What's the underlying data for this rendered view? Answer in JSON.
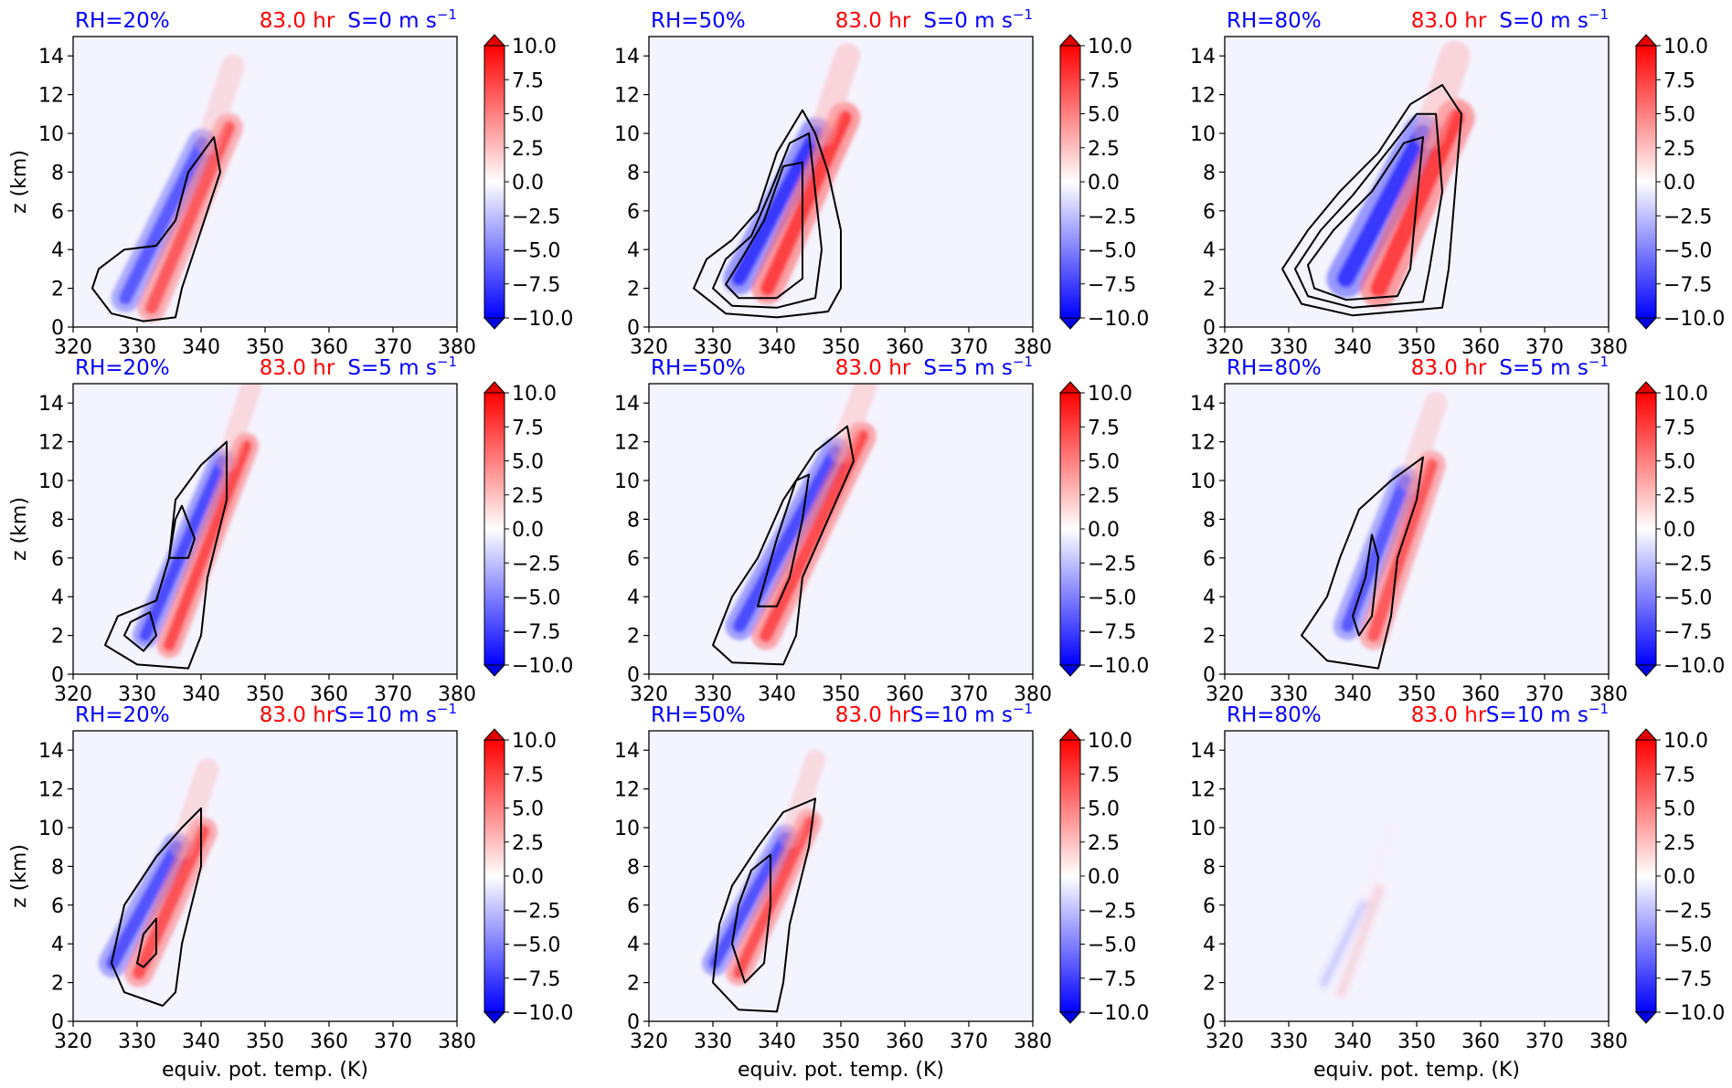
{
  "colors": {
    "blue_text": "#0000ff",
    "red_text": "#ff0000",
    "background_field": "#f4f4ff",
    "contour": "#000000"
  },
  "chart_data": {
    "type": "contourf",
    "layout": "3x3 panel grid",
    "x_axis": {
      "label": "equiv. pot. temp. (K)",
      "range": [
        320,
        380
      ],
      "ticks": [
        320,
        330,
        340,
        350,
        360,
        370,
        380
      ]
    },
    "y_axis": {
      "label": "z (km)",
      "range": [
        0,
        15
      ],
      "ticks": [
        0,
        2,
        4,
        6,
        8,
        10,
        12,
        14
      ]
    },
    "colorbar": {
      "ticks": [
        "10.0",
        "7.5",
        "5.0",
        "2.5",
        "0.0",
        "−2.5",
        "−5.0",
        "−7.5",
        "−10.0"
      ],
      "range": [
        -10,
        10
      ],
      "colormap": "blue-white-red (bwr)",
      "extend": "both"
    },
    "panels": [
      {
        "rh": "RH=20%",
        "time": "83.0 hr",
        "shear": "S=0 m s",
        "exp": "−1",
        "blob": {
          "x0": 329,
          "y0": 1.5,
          "x1": 341,
          "y1": 9.5,
          "w": 4.5,
          "intensity": 0.8
        },
        "contours": [
          [
            [
              323,
              2
            ],
            [
              324,
              3
            ],
            [
              328,
              4
            ],
            [
              333,
              4.2
            ],
            [
              336,
              5.5
            ],
            [
              338,
              8
            ],
            [
              342,
              9.8
            ],
            [
              343,
              8
            ],
            [
              340,
              5
            ],
            [
              337,
              2
            ],
            [
              336,
              0.5
            ],
            [
              331,
              0.3
            ],
            [
              326,
              0.7
            ],
            [
              323,
              2
            ]
          ]
        ]
      },
      {
        "rh": "RH=50%",
        "time": "83.0 hr",
        "shear": "S=0 m s",
        "exp": "−1",
        "blob": {
          "x0": 335,
          "y0": 2.5,
          "x1": 347,
          "y1": 10,
          "w": 5,
          "intensity": 1.0
        },
        "contours": [
          [
            [
              327,
              2
            ],
            [
              329,
              3.5
            ],
            [
              333,
              4.5
            ],
            [
              337,
              6
            ],
            [
              340,
              9
            ],
            [
              344,
              11.2
            ],
            [
              346,
              10
            ],
            [
              348,
              8
            ],
            [
              350,
              5
            ],
            [
              350,
              2
            ],
            [
              348,
              0.8
            ],
            [
              340,
              0.5
            ],
            [
              332,
              0.7
            ],
            [
              327,
              2
            ]
          ],
          [
            [
              330,
              2
            ],
            [
              332,
              3.5
            ],
            [
              336,
              4.7
            ],
            [
              339,
              7
            ],
            [
              342,
              9.5
            ],
            [
              345,
              10
            ],
            [
              346,
              7
            ],
            [
              347,
              4
            ],
            [
              346,
              1.5
            ],
            [
              340,
              1
            ],
            [
              333,
              1.1
            ],
            [
              330,
              2
            ]
          ],
          [
            [
              332,
              2.2
            ],
            [
              335,
              3.8
            ],
            [
              338,
              5.5
            ],
            [
              341,
              8.3
            ],
            [
              344,
              8.5
            ],
            [
              344,
              5.5
            ],
            [
              344,
              2.5
            ],
            [
              340,
              1.5
            ],
            [
              334,
              1.5
            ],
            [
              332,
              2.2
            ]
          ]
        ]
      },
      {
        "rh": "RH=80%",
        "time": "83.0 hr",
        "shear": "S=0 m s",
        "exp": "−1",
        "blob": {
          "x0": 340,
          "y0": 2.5,
          "x1": 352,
          "y1": 10,
          "w": 6,
          "intensity": 1.0
        },
        "contours": [
          [
            [
              329,
              3
            ],
            [
              333,
              5
            ],
            [
              338,
              7
            ],
            [
              344,
              9
            ],
            [
              349,
              11.5
            ],
            [
              354,
              12.5
            ],
            [
              357,
              11
            ],
            [
              356,
              7
            ],
            [
              355,
              3
            ],
            [
              354,
              1
            ],
            [
              340,
              0.6
            ],
            [
              332,
              1.2
            ],
            [
              329,
              3
            ]
          ],
          [
            [
              331,
              3
            ],
            [
              335,
              5
            ],
            [
              340,
              6.8
            ],
            [
              346,
              9.3
            ],
            [
              350,
              11
            ],
            [
              353,
              11
            ],
            [
              354,
              7
            ],
            [
              352,
              3
            ],
            [
              351,
              1.3
            ],
            [
              340,
              1
            ],
            [
              333,
              1.6
            ],
            [
              331,
              3
            ]
          ],
          [
            [
              333,
              3.2
            ],
            [
              337,
              5
            ],
            [
              343,
              7
            ],
            [
              348,
              9.5
            ],
            [
              351,
              9.8
            ],
            [
              350,
              6.5
            ],
            [
              349,
              3
            ],
            [
              347,
              1.6
            ],
            [
              339,
              1.4
            ],
            [
              334,
              2
            ],
            [
              333,
              3.2
            ]
          ]
        ]
      },
      {
        "rh": "RH=20%",
        "time": "83.0 hr",
        "shear": "S=5 m s",
        "exp": "−1",
        "blob": {
          "x0": 332,
          "y0": 2,
          "x1": 344,
          "y1": 11,
          "w": 4,
          "intensity": 0.9
        },
        "contours": [
          [
            [
              325,
              1.5
            ],
            [
              327,
              3
            ],
            [
              333,
              3.8
            ],
            [
              335,
              6
            ],
            [
              336,
              9
            ],
            [
              340,
              10.8
            ],
            [
              344,
              12
            ],
            [
              344,
              9
            ],
            [
              341,
              5
            ],
            [
              340,
              2
            ],
            [
              338,
              0.3
            ],
            [
              330,
              0.5
            ],
            [
              325,
              1.5
            ]
          ],
          [
            [
              335,
              6
            ],
            [
              336,
              8
            ],
            [
              337,
              8.7
            ],
            [
              339,
              7
            ],
            [
              338,
              6
            ],
            [
              335,
              6
            ]
          ],
          [
            [
              328,
              2
            ],
            [
              329,
              2.7
            ],
            [
              332,
              3.2
            ],
            [
              333,
              2
            ],
            [
              331,
              1.2
            ],
            [
              328,
              2
            ]
          ]
        ]
      },
      {
        "rh": "RH=50%",
        "time": "83.0 hr",
        "shear": "S=5 m s",
        "exp": "−1",
        "blob": {
          "x0": 335,
          "y0": 2.5,
          "x1": 350,
          "y1": 11.5,
          "w": 4.5,
          "intensity": 0.9
        },
        "contours": [
          [
            [
              330,
              1.5
            ],
            [
              333,
              4
            ],
            [
              337,
              6
            ],
            [
              341,
              9
            ],
            [
              346,
              11.5
            ],
            [
              351,
              12.8
            ],
            [
              352,
              11
            ],
            [
              348,
              8
            ],
            [
              344,
              5
            ],
            [
              343,
              2
            ],
            [
              341,
              0.5
            ],
            [
              333,
              0.6
            ],
            [
              330,
              1.5
            ]
          ],
          [
            [
              337,
              3.5
            ],
            [
              340,
              7
            ],
            [
              343,
              10
            ],
            [
              345,
              10.3
            ],
            [
              344,
              8
            ],
            [
              342,
              5
            ],
            [
              340,
              3.5
            ],
            [
              337,
              3.5
            ]
          ]
        ]
      },
      {
        "rh": "RH=80%",
        "time": "83.0 hr",
        "shear": "S=5 m s",
        "exp": "−1",
        "blob": {
          "x0": 340,
          "y0": 2.5,
          "x1": 349,
          "y1": 10,
          "w": 4.5,
          "intensity": 0.8
        },
        "contours": [
          [
            [
              332,
              2
            ],
            [
              336,
              4
            ],
            [
              338,
              6
            ],
            [
              341,
              8.5
            ],
            [
              346,
              10
            ],
            [
              351,
              11.2
            ],
            [
              350,
              9
            ],
            [
              347,
              6
            ],
            [
              346,
              3
            ],
            [
              344,
              0.3
            ],
            [
              336,
              0.7
            ],
            [
              332,
              2
            ]
          ],
          [
            [
              340,
              3
            ],
            [
              342,
              5
            ],
            [
              343,
              7.2
            ],
            [
              344,
              6
            ],
            [
              343,
              3
            ],
            [
              341,
              2
            ],
            [
              340,
              3
            ]
          ]
        ]
      },
      {
        "rh": "RH=20%",
        "time": "83.0 hr",
        "shear": "S=10 m s",
        "exp": "−1",
        "blob": {
          "x0": 327,
          "y0": 3,
          "x1": 337,
          "y1": 9,
          "w": 4.5,
          "intensity": 0.85
        },
        "contours": [
          [
            [
              326,
              3
            ],
            [
              328,
              6
            ],
            [
              333,
              8.5
            ],
            [
              337,
              10
            ],
            [
              340,
              11
            ],
            [
              340,
              8
            ],
            [
              337,
              4
            ],
            [
              336,
              1.5
            ],
            [
              334,
              0.8
            ],
            [
              328,
              1.5
            ],
            [
              326,
              3
            ]
          ],
          [
            [
              330,
              3
            ],
            [
              331,
              4.5
            ],
            [
              333,
              5.3
            ],
            [
              333,
              3.5
            ],
            [
              331,
              2.8
            ],
            [
              330,
              3
            ]
          ]
        ]
      },
      {
        "rh": "RH=50%",
        "time": "83.0 hr",
        "shear": "S=10 m s",
        "exp": "−1",
        "blob": {
          "x0": 331,
          "y0": 3,
          "x1": 342,
          "y1": 9.5,
          "w": 4,
          "intensity": 0.85
        },
        "contours": [
          [
            [
              330,
              2
            ],
            [
              331,
              5
            ],
            [
              333,
              7
            ],
            [
              337,
              9
            ],
            [
              341,
              10.8
            ],
            [
              346,
              11.5
            ],
            [
              345,
              9
            ],
            [
              342,
              5
            ],
            [
              341,
              2
            ],
            [
              340,
              0.5
            ],
            [
              334,
              0.6
            ],
            [
              330,
              2
            ]
          ],
          [
            [
              333,
              4
            ],
            [
              334,
              6
            ],
            [
              336,
              7.8
            ],
            [
              339,
              8.6
            ],
            [
              339,
              6
            ],
            [
              338,
              3
            ],
            [
              335,
              2
            ],
            [
              333,
              4
            ]
          ]
        ]
      },
      {
        "rh": "RH=80%",
        "time": "83.0 hr",
        "shear": "S=10 m s",
        "exp": "−1",
        "blob": {
          "x0": 336,
          "y0": 2,
          "x1": 342,
          "y1": 6,
          "w": 2.5,
          "intensity": 0.12
        },
        "contours": []
      }
    ]
  }
}
